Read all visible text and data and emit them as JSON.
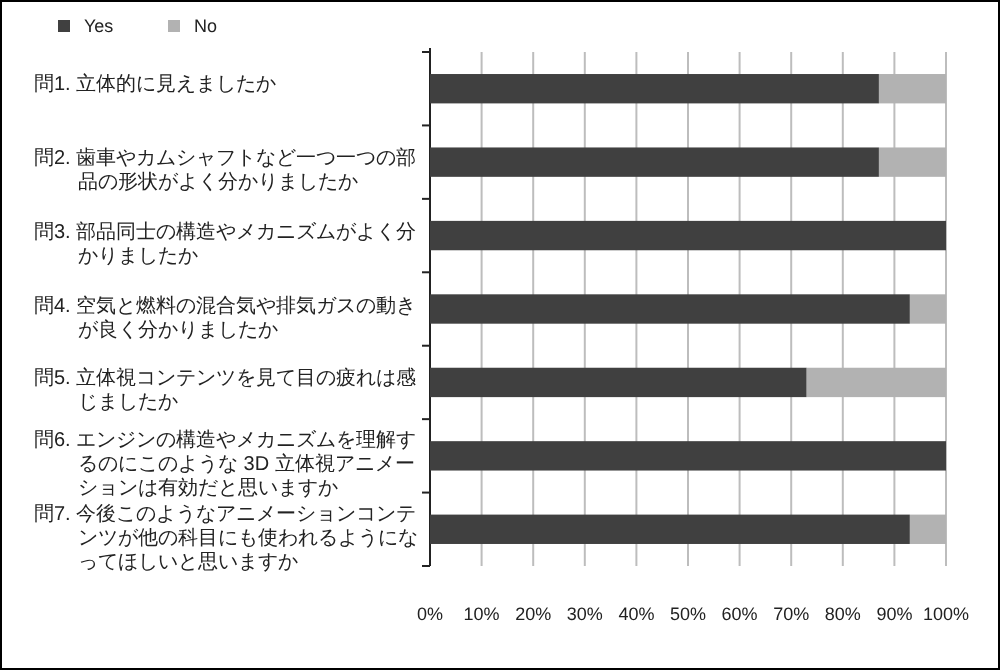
{
  "chart_data": {
    "type": "bar",
    "orientation": "horizontal",
    "stacked": true,
    "grid": "x",
    "legend": "top left",
    "categories": [
      "問1. 立体的に見えましたか",
      "問2. 歯車やカムシャフトなど一つ一つの部品の形状がよく分かりましたか",
      "問3. 部品同士の構造やメカニズムがよく分かりましたか",
      "問4. 空気と燃料の混合気や排気ガスの動きが良く分かりましたか",
      "問5. 立体視コンテンツを見て目の疲れは感じましたか",
      "問6. エンジンの構造やメカニズムを理解するのにこのような 3D 立体視アニメーションは有効だと思いますか",
      "問7. 今後このようなアニメーションコンテンツが他の科目にも使われるようになってほしいと思いますか"
    ],
    "series": [
      {
        "name": "Yes",
        "color": "#404040",
        "values": [
          87,
          87,
          100,
          93,
          73,
          100,
          93
        ]
      },
      {
        "name": "No",
        "color": "#b2b2b2",
        "values": [
          13,
          13,
          0,
          7,
          27,
          0,
          7
        ]
      }
    ],
    "xlim": [
      0,
      100
    ],
    "xticks": [
      {
        "value": 0,
        "label": "0%"
      },
      {
        "value": 10,
        "label": "10%"
      },
      {
        "value": 20,
        "label": "20%"
      },
      {
        "value": 30,
        "label": "30%"
      },
      {
        "value": 40,
        "label": "40%"
      },
      {
        "value": 50,
        "label": "50%"
      },
      {
        "value": 60,
        "label": "60%"
      },
      {
        "value": 70,
        "label": "70%"
      },
      {
        "value": 80,
        "label": "80%"
      },
      {
        "value": 90,
        "label": "90%"
      },
      {
        "value": 100,
        "label": "100%"
      }
    ]
  }
}
